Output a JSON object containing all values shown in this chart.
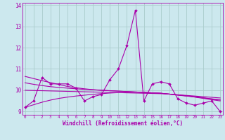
{
  "xlabel": "Windchill (Refroidissement éolien,°C)",
  "bg_color": "#cce8ee",
  "line_color": "#aa00aa",
  "grid_color": "#aacccc",
  "x_data": [
    0,
    1,
    2,
    3,
    4,
    5,
    6,
    7,
    8,
    9,
    10,
    11,
    12,
    13,
    14,
    15,
    16,
    17,
    18,
    19,
    20,
    21,
    22,
    23
  ],
  "line1": [
    9.2,
    9.5,
    10.6,
    10.3,
    10.3,
    10.3,
    10.1,
    9.5,
    9.7,
    9.8,
    10.5,
    11.0,
    12.1,
    13.75,
    9.5,
    10.3,
    10.4,
    10.3,
    9.6,
    9.4,
    9.3,
    9.4,
    9.5,
    9.0
  ],
  "trend1": [
    10.65,
    10.55,
    10.45,
    10.36,
    10.27,
    10.18,
    10.12,
    10.07,
    10.03,
    10.0,
    9.98,
    9.96,
    9.94,
    9.92,
    9.9,
    9.88,
    9.86,
    9.82,
    9.78,
    9.74,
    9.68,
    9.62,
    9.56,
    9.5
  ],
  "trend2": [
    9.2,
    9.32,
    9.44,
    9.54,
    9.62,
    9.68,
    9.73,
    9.77,
    9.81,
    9.84,
    9.87,
    9.89,
    9.91,
    9.91,
    9.9,
    9.88,
    9.86,
    9.82,
    9.77,
    9.73,
    9.69,
    9.64,
    9.59,
    9.54
  ],
  "trend3": [
    10.35,
    10.28,
    10.22,
    10.17,
    10.13,
    10.1,
    10.07,
    10.04,
    10.02,
    10.0,
    9.98,
    9.96,
    9.94,
    9.92,
    9.9,
    9.88,
    9.86,
    9.82,
    9.78,
    9.74,
    9.7,
    9.65,
    9.6,
    9.55
  ],
  "trend4": [
    10.0,
    9.99,
    9.98,
    9.97,
    9.96,
    9.95,
    9.94,
    9.93,
    9.92,
    9.91,
    9.9,
    9.89,
    9.88,
    9.87,
    9.86,
    9.85,
    9.84,
    9.82,
    9.79,
    9.76,
    9.73,
    9.7,
    9.67,
    9.64
  ],
  "ylim": [
    8.85,
    14.1
  ],
  "yticks": [
    9,
    10,
    11,
    12,
    13,
    14
  ],
  "xticks": [
    0,
    1,
    2,
    3,
    4,
    5,
    6,
    7,
    8,
    9,
    10,
    11,
    12,
    13,
    14,
    15,
    16,
    17,
    18,
    19,
    20,
    21,
    22,
    23
  ]
}
